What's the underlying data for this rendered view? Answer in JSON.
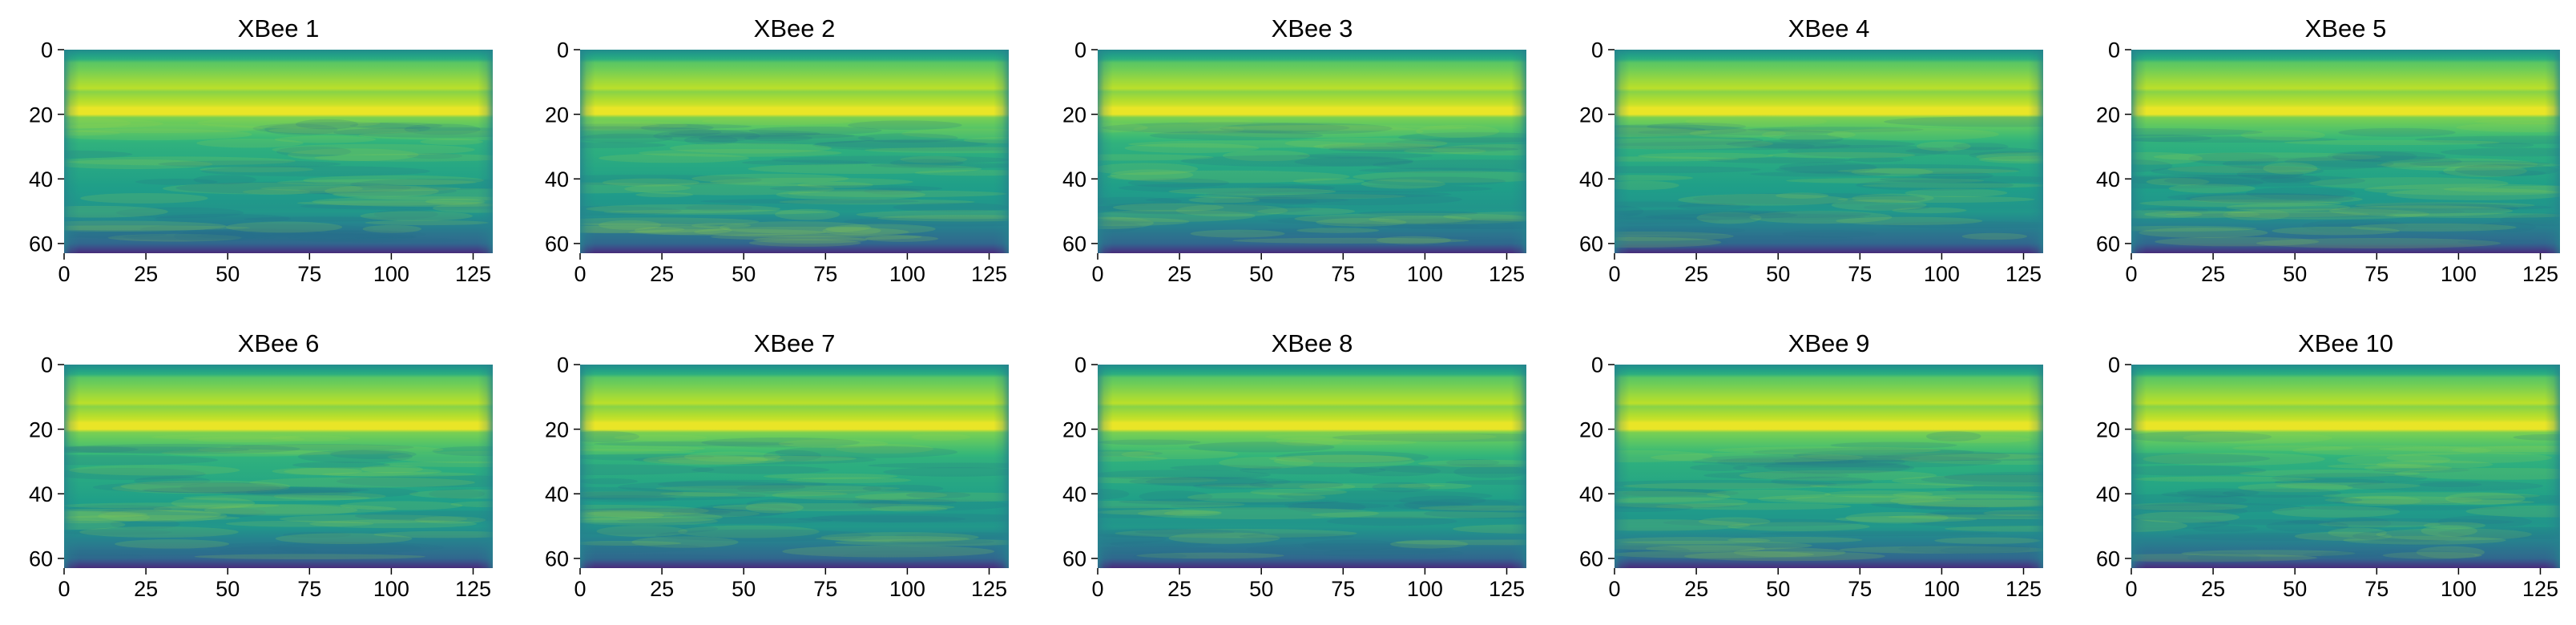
{
  "chart_data": [
    {
      "type": "heatmap",
      "title": "XBee 1",
      "x_ticks": [
        "0",
        "25",
        "50",
        "75",
        "100",
        "125"
      ],
      "y_ticks": [
        "0",
        "20",
        "40",
        "60"
      ],
      "xlim": [
        0,
        131
      ],
      "ylim": [
        63,
        0
      ],
      "grid": false,
      "colormap": "viridis",
      "bright_band_row": 19
    },
    {
      "type": "heatmap",
      "title": "XBee 2",
      "x_ticks": [
        "0",
        "25",
        "50",
        "75",
        "100",
        "125"
      ],
      "y_ticks": [
        "0",
        "20",
        "40",
        "60"
      ],
      "xlim": [
        0,
        131
      ],
      "ylim": [
        63,
        0
      ],
      "grid": false,
      "colormap": "viridis",
      "bright_band_row": 19
    },
    {
      "type": "heatmap",
      "title": "XBee 3",
      "x_ticks": [
        "0",
        "25",
        "50",
        "75",
        "100",
        "125"
      ],
      "y_ticks": [
        "0",
        "20",
        "40",
        "60"
      ],
      "xlim": [
        0,
        131
      ],
      "ylim": [
        63,
        0
      ],
      "grid": false,
      "colormap": "viridis",
      "bright_band_row": 19
    },
    {
      "type": "heatmap",
      "title": "XBee 4",
      "x_ticks": [
        "0",
        "25",
        "50",
        "75",
        "100",
        "125"
      ],
      "y_ticks": [
        "0",
        "20",
        "40",
        "60"
      ],
      "xlim": [
        0,
        131
      ],
      "ylim": [
        63,
        0
      ],
      "grid": false,
      "colormap": "viridis",
      "bright_band_row": 19
    },
    {
      "type": "heatmap",
      "title": "XBee 5",
      "x_ticks": [
        "0",
        "25",
        "50",
        "75",
        "100",
        "125"
      ],
      "y_ticks": [
        "0",
        "20",
        "40",
        "60"
      ],
      "xlim": [
        0,
        131
      ],
      "ylim": [
        63,
        0
      ],
      "grid": false,
      "colormap": "viridis",
      "bright_band_row": 19
    },
    {
      "type": "heatmap",
      "title": "XBee 6",
      "x_ticks": [
        "0",
        "25",
        "50",
        "75",
        "100",
        "125"
      ],
      "y_ticks": [
        "0",
        "20",
        "40",
        "60"
      ],
      "xlim": [
        0,
        131
      ],
      "ylim": [
        63,
        0
      ],
      "grid": false,
      "colormap": "viridis",
      "bright_band_row": 19
    },
    {
      "type": "heatmap",
      "title": "XBee 7",
      "x_ticks": [
        "0",
        "25",
        "50",
        "75",
        "100",
        "125"
      ],
      "y_ticks": [
        "0",
        "20",
        "40",
        "60"
      ],
      "xlim": [
        0,
        131
      ],
      "ylim": [
        63,
        0
      ],
      "grid": false,
      "colormap": "viridis",
      "bright_band_row": 19
    },
    {
      "type": "heatmap",
      "title": "XBee 8",
      "x_ticks": [
        "0",
        "25",
        "50",
        "75",
        "100",
        "125"
      ],
      "y_ticks": [
        "0",
        "20",
        "40",
        "60"
      ],
      "xlim": [
        0,
        131
      ],
      "ylim": [
        63,
        0
      ],
      "grid": false,
      "colormap": "viridis",
      "bright_band_row": 19
    },
    {
      "type": "heatmap",
      "title": "XBee 9",
      "x_ticks": [
        "0",
        "25",
        "50",
        "75",
        "100",
        "125"
      ],
      "y_ticks": [
        "0",
        "20",
        "40",
        "60"
      ],
      "xlim": [
        0,
        131
      ],
      "ylim": [
        63,
        0
      ],
      "grid": false,
      "colormap": "viridis",
      "bright_band_row": 19
    },
    {
      "type": "heatmap",
      "title": "XBee 10",
      "x_ticks": [
        "0",
        "25",
        "50",
        "75",
        "100",
        "125"
      ],
      "y_ticks": [
        "0",
        "20",
        "40",
        "60"
      ],
      "xlim": [
        0,
        131
      ],
      "ylim": [
        63,
        0
      ],
      "grid": false,
      "colormap": "viridis",
      "bright_band_row": 19
    }
  ]
}
